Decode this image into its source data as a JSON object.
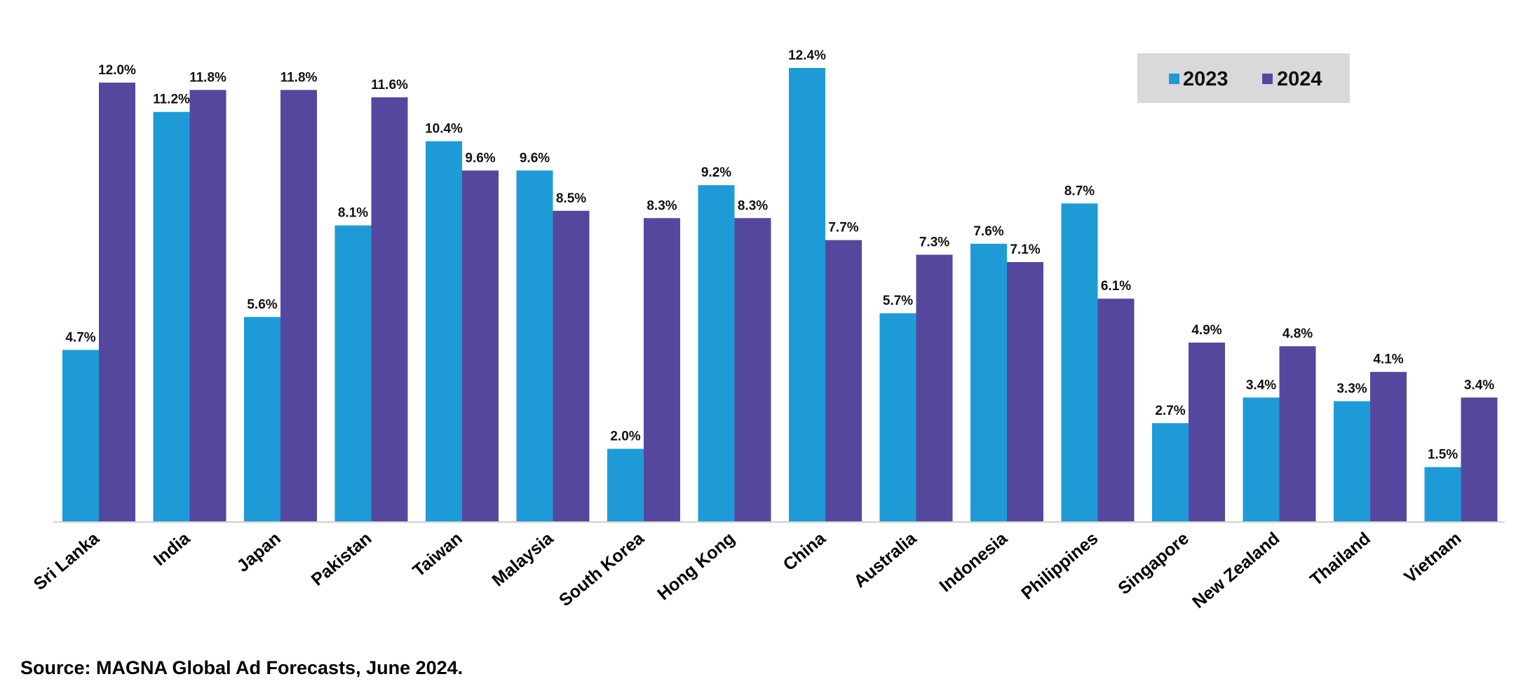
{
  "colors": {
    "2023": "#1E9BD7",
    "2024": "#55479E",
    "axis": "#D0D0D0",
    "legend_bg": "#D9D9D9"
  },
  "chart_data": {
    "type": "bar",
    "categories": [
      "Sri Lanka",
      "India",
      "Japan",
      "Pakistan",
      "Taiwan",
      "Malaysia",
      "South Korea",
      "Hong Kong",
      "China",
      "Australia",
      "Indonesia",
      "Philippines",
      "Singapore",
      "New Zealand",
      "Thailand",
      "Vietnam"
    ],
    "series": [
      {
        "name": "2023",
        "values": [
          4.7,
          11.2,
          5.6,
          8.1,
          10.4,
          9.6,
          2.0,
          9.2,
          12.4,
          5.7,
          7.6,
          8.7,
          2.7,
          3.4,
          3.3,
          1.5
        ],
        "labels": [
          "4.7%",
          "11.2%",
          "5.6%",
          "8.1%",
          "10.4%",
          "9.6%",
          "2.0%",
          "9.2%",
          "12.4%",
          "5.7%",
          "7.6%",
          "8.7%",
          "2.7%",
          "3.4%",
          "3.3%",
          "1.5%"
        ]
      },
      {
        "name": "2024",
        "values": [
          12.0,
          11.8,
          11.8,
          11.6,
          9.6,
          8.5,
          8.3,
          8.3,
          7.7,
          7.3,
          7.1,
          6.1,
          4.9,
          4.8,
          4.1,
          3.4
        ],
        "labels": [
          "12.0%",
          "11.8%",
          "11.8%",
          "11.6%",
          "9.6%",
          "8.5%",
          "8.3%",
          "8.3%",
          "7.7%",
          "7.3%",
          "7.1%",
          "6.1%",
          "4.9%",
          "4.8%",
          "4.1%",
          "3.4%"
        ]
      }
    ],
    "ylim": [
      0,
      12.7
    ],
    "grid": false,
    "legend": "top-right"
  },
  "source": "Source: MAGNA Global Ad Forecasts, June 2024."
}
